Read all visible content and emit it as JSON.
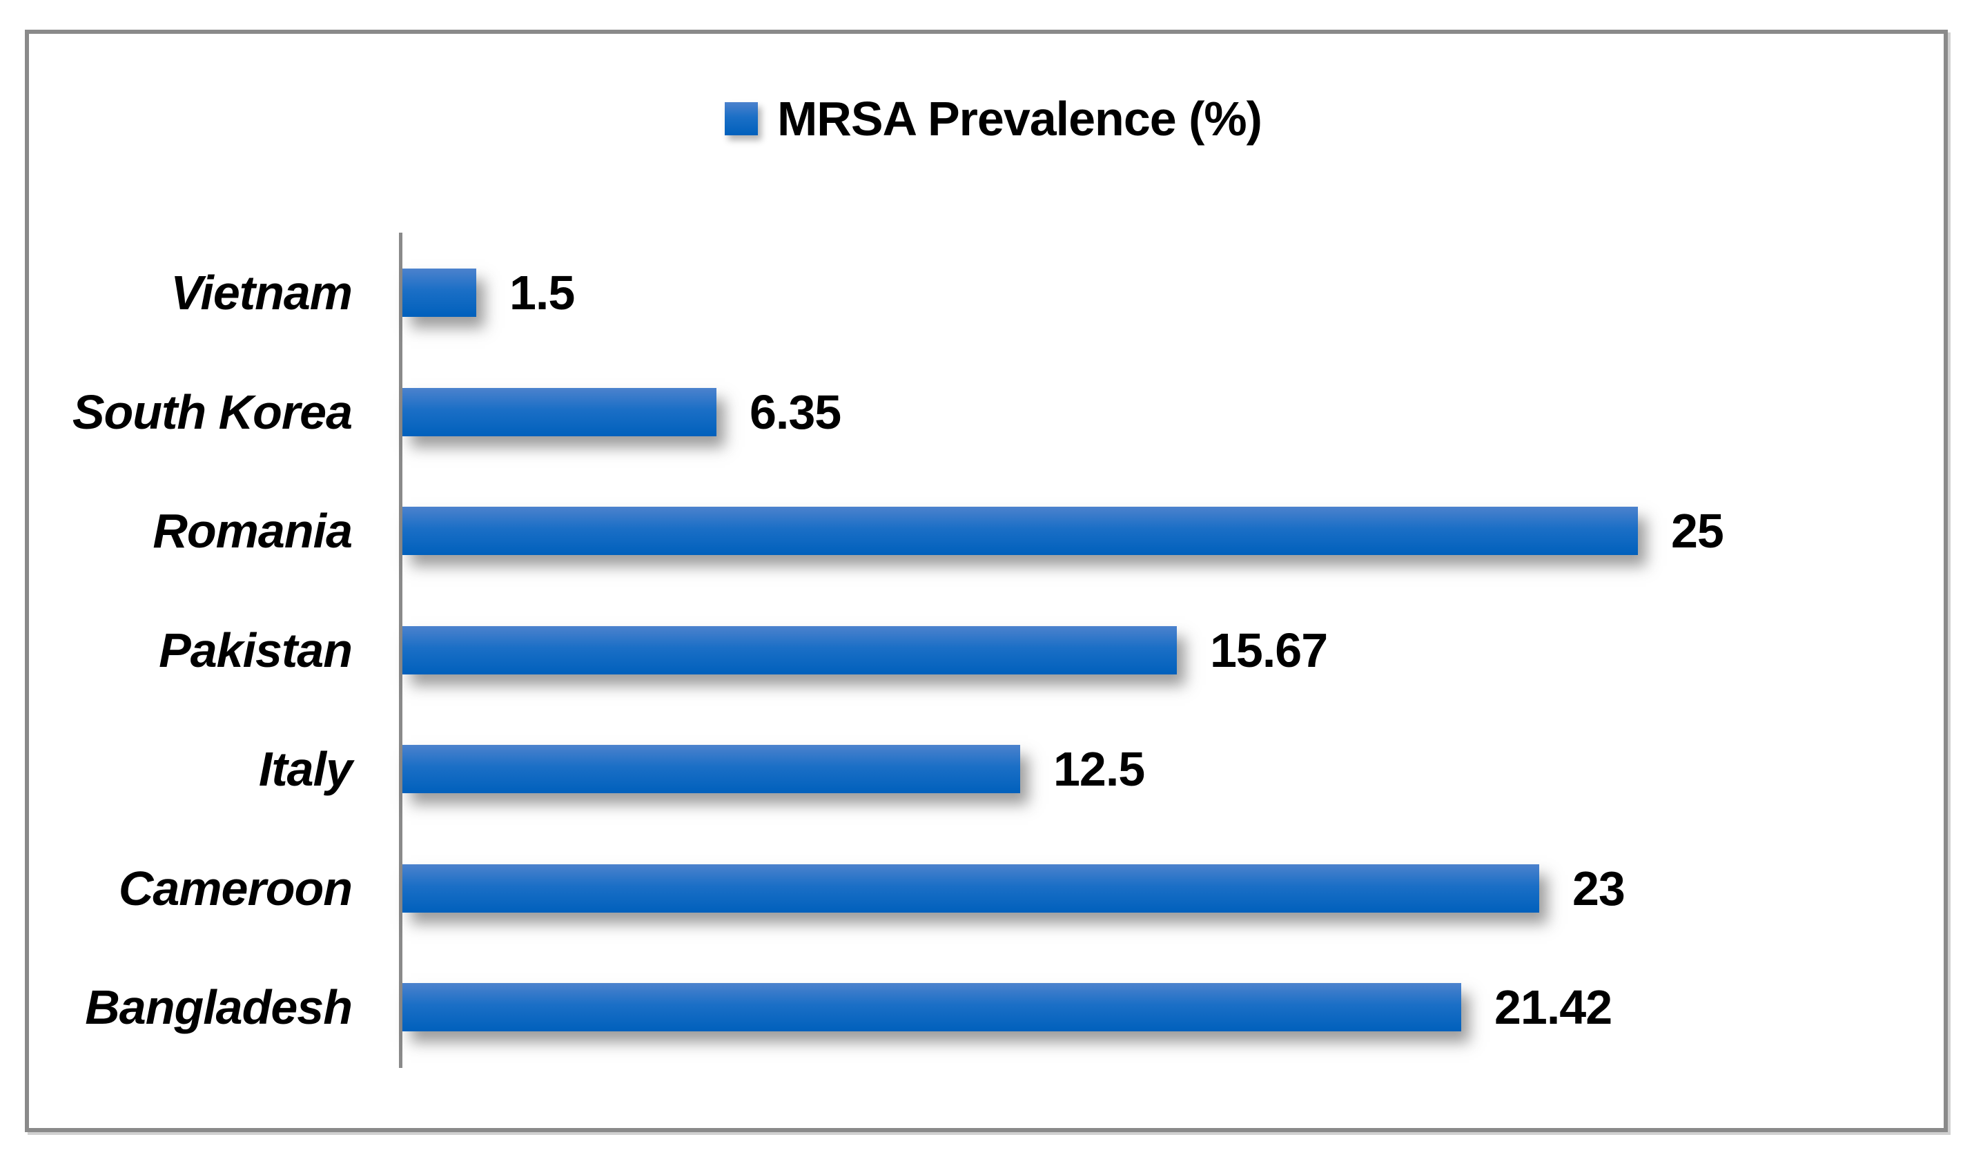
{
  "figure": {
    "background": "#ffffff",
    "frame_color": "#8a8a8a"
  },
  "chart_data": {
    "type": "bar",
    "orientation": "horizontal",
    "title": "MRSA Prevalence (%)",
    "legend": [
      "MRSA Prevalence (%)"
    ],
    "legend_position": "top-center",
    "grid": false,
    "axis_line_color": "#8a8a8a",
    "bar_color_top": "#4c82cd",
    "bar_color_mid": "#1b6fc6",
    "bar_color_bottom": "#0060bc",
    "text_color": "#000000",
    "xlim": [
      0,
      26
    ],
    "categories": [
      "Vietnam",
      "South Korea",
      "Romania",
      "Pakistan",
      "Italy",
      "Cameroon",
      "Bangladesh"
    ],
    "categories_order": "top-to-bottom",
    "values": [
      1.5,
      6.35,
      25,
      15.67,
      12.5,
      23,
      21.42
    ],
    "data_labels": [
      "1.5",
      "6.35",
      "25",
      "15.67",
      "12.5",
      "23",
      "21.42"
    ]
  }
}
